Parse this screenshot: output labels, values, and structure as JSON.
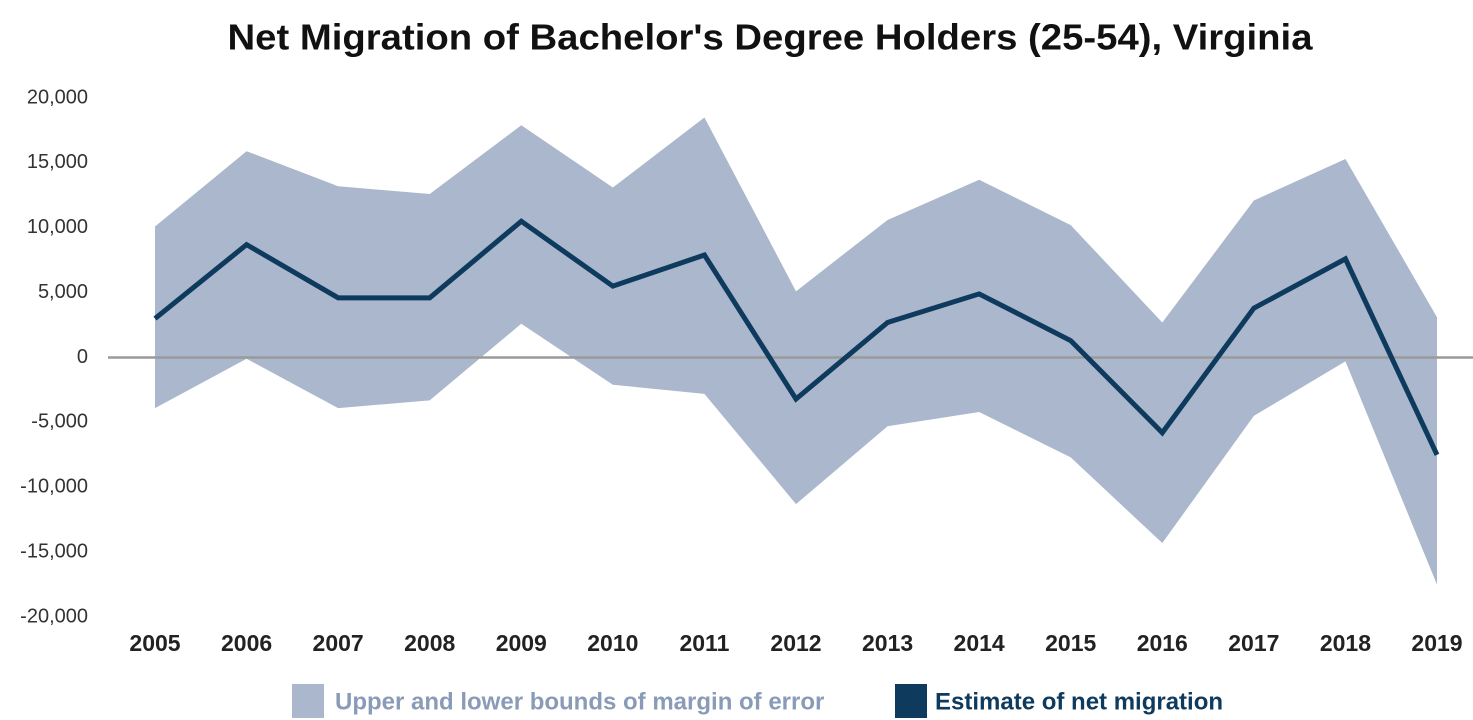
{
  "chart_data": {
    "type": "line",
    "title": "Net Migration of Bachelor's Degree Holders (25-54), Virginia",
    "categories": [
      "2005",
      "2006",
      "2007",
      "2008",
      "2009",
      "2010",
      "2011",
      "2012",
      "2013",
      "2014",
      "2015",
      "2016",
      "2017",
      "2018",
      "2019"
    ],
    "series": [
      {
        "name": "Upper and lower bounds of margin of error",
        "color": "#aab7cc",
        "kind": "band",
        "upper": [
          10100,
          15900,
          13200,
          12600,
          17900,
          13100,
          18500,
          5100,
          10600,
          13700,
          10200,
          2700,
          12100,
          15300,
          3100
        ],
        "lower": [
          -3900,
          -100,
          -3900,
          -3300,
          2600,
          -2100,
          -2800,
          -11300,
          -5300,
          -4200,
          -7700,
          -14300,
          -4500,
          -300,
          -17500
        ]
      },
      {
        "name": "Estimate of net migration",
        "color": "#0e3a5e",
        "kind": "line",
        "values": [
          3000,
          8700,
          4600,
          4600,
          10500,
          5500,
          7900,
          -3200,
          2700,
          4900,
          1300,
          -5800,
          3800,
          7600,
          -7500
        ]
      }
    ],
    "ylim": [
      -20000,
      20000
    ],
    "yticks": [
      {
        "value": 20000,
        "label": "20,000"
      },
      {
        "value": 15000,
        "label": "15,000"
      },
      {
        "value": 10000,
        "label": "10,000"
      },
      {
        "value": 5000,
        "label": "5,000"
      },
      0,
      {
        "value": -5000,
        "label": "-5,000"
      },
      {
        "value": -10000,
        "label": "-10,000"
      },
      {
        "value": -15000,
        "label": "-15,000"
      },
      {
        "value": -20000,
        "label": "-20,000"
      }
    ],
    "zero_line": true,
    "grid": false,
    "legend": "bottom"
  }
}
